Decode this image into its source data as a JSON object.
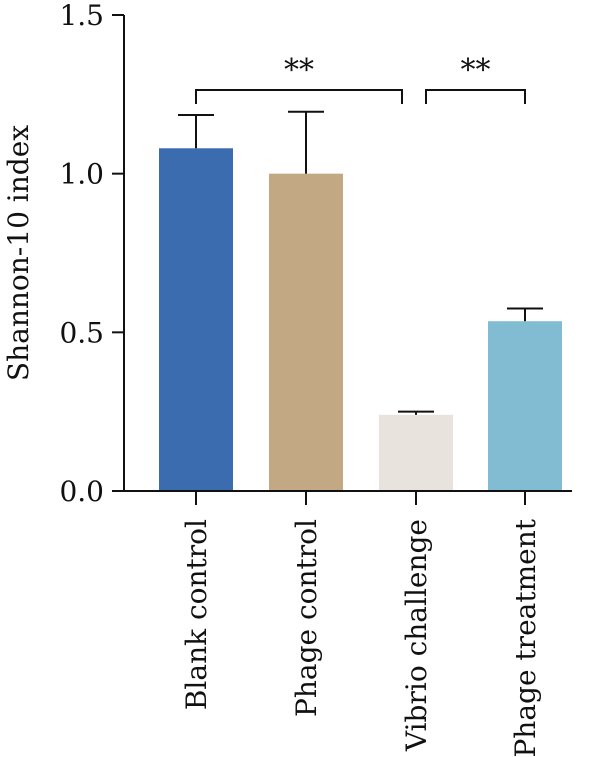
{
  "chart_data": {
    "type": "bar",
    "categories": [
      "Blank control",
      "Phage control",
      "Vibrio challenge",
      "Phage treatment"
    ],
    "values": [
      1.08,
      1.0,
      0.24,
      0.535
    ],
    "errors": [
      0.105,
      0.195,
      0.01,
      0.04
    ],
    "colors": [
      "#3b6cb0",
      "#c2a883",
      "#e8e3dc",
      "#82bcd2"
    ],
    "ylabel": "Shannon-10 index",
    "ylim": [
      0,
      1.5
    ],
    "yticks": [
      "0.0",
      "0.5",
      "1.0",
      "1.5"
    ],
    "grid": false,
    "significance": [
      {
        "from": "Blank control",
        "to": "Vibrio challenge",
        "label": "**"
      },
      {
        "from": "Vibrio challenge",
        "to": "Phage treatment",
        "label": "**"
      }
    ]
  }
}
